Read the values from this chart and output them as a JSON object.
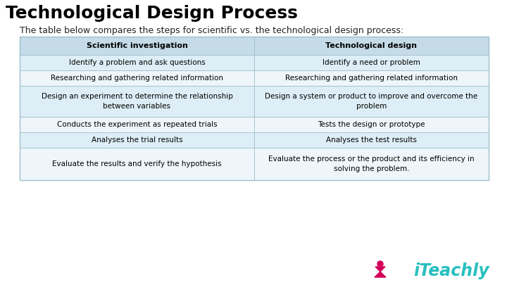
{
  "title": "Technological Design Process",
  "subtitle": "The table below compares the steps for scientific vs. the technological design process:",
  "bg_color": "#ffffff",
  "col_headers": [
    "Scientific investigation",
    "Technological design"
  ],
  "header_bg": "#c5dce8",
  "row_bg_odd": "#ddeef6",
  "row_bg_even": "#eef6fb",
  "table_border": "#a0bfcc",
  "rows": [
    [
      "Identify a problem and ask questions",
      "Identify a need or problem"
    ],
    [
      "Researching and gathering related information",
      "Researching and gathering related information"
    ],
    [
      "Design an experiment to determine the relationship\nbetween variables",
      "Design a system or product to improve and overcome the\nproblem"
    ],
    [
      "Conducts the experiment as repeated trials",
      "Tests the design or prototype"
    ],
    [
      "Analyses the trial results",
      "Analyses the test results"
    ],
    [
      "Evaluate the results and verify the hypothesis",
      "Evaluate the process or the product and its efficiency in\nsolving the problem."
    ]
  ],
  "title_fontsize": 18,
  "subtitle_fontsize": 9,
  "header_fontsize": 8,
  "cell_fontsize": 7.5,
  "iteachly_teal": "#2abfbf",
  "iteachly_pink": "#d4005a"
}
